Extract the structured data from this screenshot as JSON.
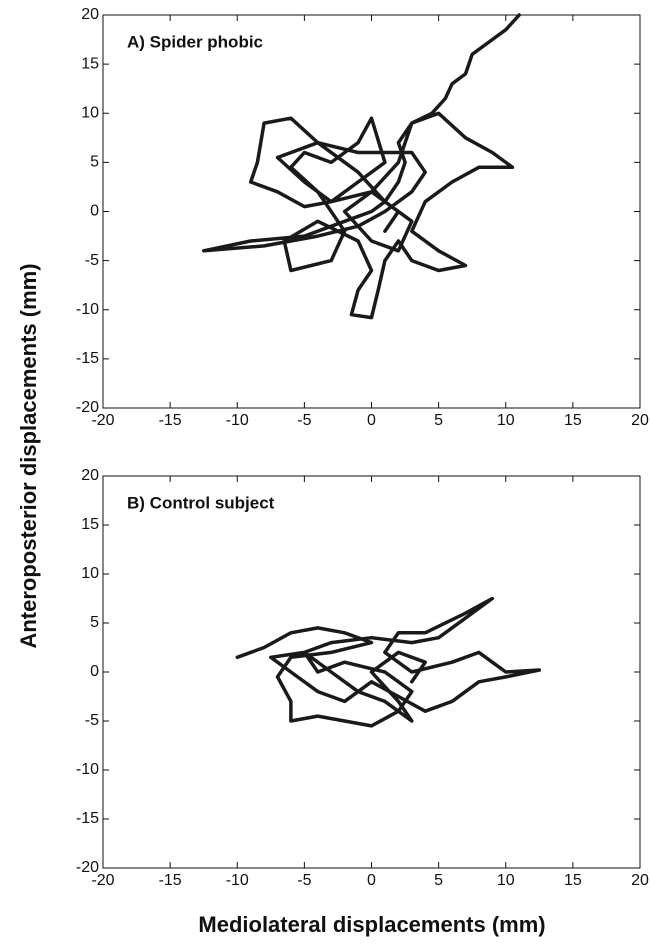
{
  "ylabel": "Anteroposterior displacements (mm)",
  "xlabel": "Mediolateral displacements (mm)",
  "chart_data": [
    {
      "type": "line",
      "title": "A) Spider phobic",
      "color": "#1a1a1a",
      "xlim": [
        -20,
        20
      ],
      "ylim": [
        -20,
        20
      ],
      "xticks": [
        -20,
        -15,
        -10,
        -5,
        0,
        5,
        10,
        15,
        20
      ],
      "yticks": [
        -20,
        -15,
        -10,
        -5,
        0,
        5,
        10,
        15,
        20
      ],
      "x": [
        11,
        10,
        8.5,
        7.5,
        7,
        6,
        5.5,
        4.5,
        3,
        2,
        2.5,
        2,
        1,
        0,
        -2,
        -5,
        -9,
        -12.5,
        -8,
        -4,
        -1,
        1,
        3,
        4,
        3,
        -1,
        -4,
        -6,
        -8,
        -8.5,
        -9,
        -7,
        -5,
        -3,
        -1,
        1,
        0,
        -1,
        -3,
        -5,
        -6,
        -4,
        -2,
        -3,
        -6,
        -6.5,
        -4,
        -1,
        0,
        -1,
        -1.5,
        0,
        0.5,
        1,
        2,
        3,
        5,
        7,
        5,
        3,
        4,
        6,
        8,
        10.5,
        9,
        7,
        5,
        3,
        2,
        0,
        -3,
        -5,
        -7,
        -4,
        -1,
        1,
        3,
        2,
        0,
        -2,
        0,
        2,
        1
      ],
      "y": [
        20,
        18.5,
        17,
        16,
        14,
        13,
        11.5,
        10,
        9,
        7,
        5,
        3,
        1,
        0,
        -1,
        -2.5,
        -3,
        -4,
        -3.5,
        -2.5,
        -1.5,
        0,
        2,
        4,
        6,
        6,
        7,
        9.5,
        9,
        5,
        3,
        2,
        0.5,
        1,
        3,
        5,
        9.5,
        7,
        5,
        6,
        4.5,
        2,
        -2,
        -5,
        -6,
        -3,
        -1,
        -3,
        -6,
        -8,
        -10.5,
        -10.8,
        -8,
        -5,
        -3,
        -5,
        -6,
        -5.5,
        -4,
        -2,
        1,
        3,
        4.5,
        4.5,
        6,
        7.5,
        10,
        9,
        5,
        2,
        1,
        3,
        5.5,
        7,
        4,
        1,
        -1,
        -4,
        -3,
        0,
        2,
        0,
        -2
      ]
    },
    {
      "type": "line",
      "title": "B) Control subject",
      "color": "#1a1a1a",
      "xlim": [
        -20,
        20
      ],
      "ylim": [
        -20,
        20
      ],
      "xticks": [
        -20,
        -15,
        -10,
        -5,
        0,
        5,
        10,
        15,
        20
      ],
      "yticks": [
        -20,
        -15,
        -10,
        -5,
        0,
        5,
        10,
        15,
        20
      ],
      "x": [
        -10,
        -8,
        -6,
        -4,
        -2,
        0,
        -3,
        -6,
        -7,
        -6,
        -6,
        -4,
        -2,
        0,
        2,
        3,
        1,
        -2,
        -4,
        -5,
        -3,
        0,
        3,
        5,
        7,
        9,
        7,
        4,
        2,
        1,
        3,
        6,
        8,
        9,
        10,
        12.5,
        10,
        8,
        7,
        6,
        4,
        2,
        0,
        -2,
        -4,
        -6,
        -7.5,
        -5,
        -3,
        -1,
        1,
        3,
        2,
        0,
        2,
        4,
        3
      ],
      "y": [
        1.5,
        2.5,
        4,
        4.5,
        4,
        3,
        2,
        1.5,
        -0.5,
        -3,
        -5,
        -4.5,
        -5,
        -5.5,
        -4,
        -2,
        0,
        1,
        0,
        2,
        3,
        3.5,
        3,
        3.5,
        5.5,
        7.5,
        6,
        4,
        4,
        2,
        0,
        1,
        2,
        1,
        0,
        0.2,
        -0.5,
        -1,
        -2,
        -3,
        -4,
        -2.5,
        -1,
        -3,
        -2,
        0,
        1.5,
        2,
        0,
        -2,
        -3,
        -5,
        -3,
        0,
        2,
        1,
        -1
      ]
    }
  ]
}
